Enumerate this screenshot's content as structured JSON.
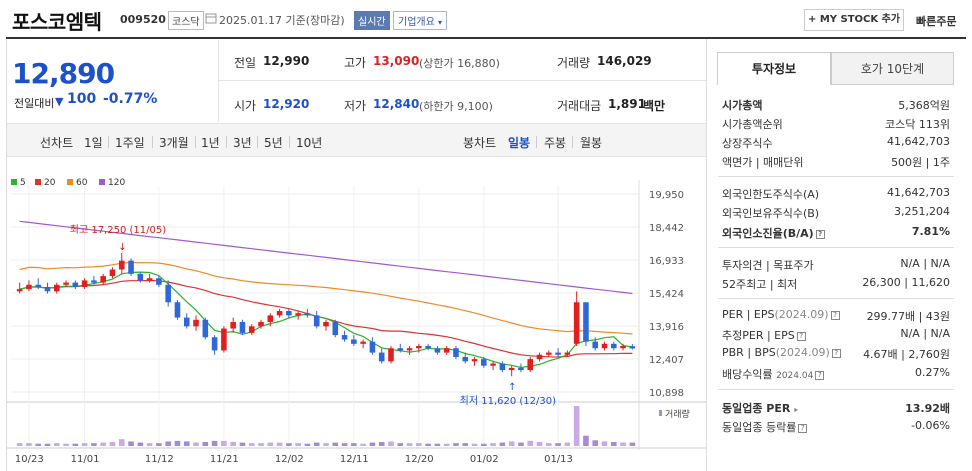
{
  "header": {
    "title": "포스코엠텍",
    "code": "009520",
    "market": "코스닥",
    "date_text": "2025.01.17 기준(장마감)",
    "realtime": "실시간",
    "corp_info": "기업개요",
    "mystock": "+ MY STOCK 추가",
    "quick_order": "빠른주문"
  },
  "summary": {
    "price": "12,890",
    "prev_label": "전일대비",
    "diff": "100",
    "pct": "-0.77%",
    "prev_close_label": "전일",
    "prev_close": "12,990",
    "high_label": "고가",
    "high": "13,090",
    "upper_limit": "(상한가 16,880)",
    "volume_label": "거래량",
    "volume": "146,029",
    "open_label": "시가",
    "open": "12,920",
    "low_label": "저가",
    "low": "12,840",
    "lower_limit": "(하한가 9,100)",
    "amount_label": "거래대금",
    "amount": "1,891",
    "amount_unit": "백만"
  },
  "periods": {
    "line_label": "선차트",
    "items": [
      "1일",
      "1주일",
      "3개월",
      "1년",
      "3년",
      "5년",
      "10년"
    ],
    "candle_label": "봉차트",
    "candle_items": [
      "일봉",
      "주봉",
      "월봉"
    ]
  },
  "legend": [
    "5",
    "20",
    "60",
    "120"
  ],
  "colors": {
    "ma5": "#2bb32b",
    "ma20": "#e03030",
    "ma60": "#f08a24",
    "ma120": "#a05ad0",
    "up": "#e02020",
    "down": "#2e67d8",
    "accent_blue": "#1d51c9"
  },
  "chart_data": {
    "type": "candlestick",
    "y_ticks": [
      "19,950",
      "18,442",
      "16,933",
      "15,424",
      "13,916",
      "12,407",
      "10,898"
    ],
    "ylim": [
      10898,
      19950
    ],
    "x_labels": [
      "10/23",
      "11/01",
      "11/12",
      "11/21",
      "12/02",
      "12/11",
      "12/20",
      "01/02",
      "01/13"
    ],
    "annotation_high": "최고 17,250 (11/05)",
    "annotation_low": "최저 11,620 (12/30)",
    "volume_label": "거래량",
    "candles": [
      [
        15500,
        15900,
        15400,
        15600
      ],
      [
        15600,
        16000,
        15500,
        15800
      ],
      [
        15800,
        16100,
        15600,
        15700
      ],
      [
        15700,
        15900,
        15400,
        15500
      ],
      [
        15500,
        15900,
        15400,
        15800
      ],
      [
        15800,
        16000,
        15700,
        15900
      ],
      [
        15900,
        16000,
        15600,
        15700
      ],
      [
        15700,
        16100,
        15600,
        16000
      ],
      [
        16000,
        16200,
        15800,
        15900
      ],
      [
        15900,
        16300,
        15800,
        16200
      ],
      [
        16200,
        16600,
        16100,
        16500
      ],
      [
        16500,
        17250,
        16300,
        16900
      ],
      [
        16900,
        17000,
        16200,
        16300
      ],
      [
        16300,
        16400,
        15900,
        16000
      ],
      [
        16000,
        16300,
        15900,
        16100
      ],
      [
        16100,
        16200,
        15700,
        15800
      ],
      [
        15800,
        16000,
        14800,
        15000
      ],
      [
        15000,
        15100,
        14200,
        14300
      ],
      [
        14300,
        14500,
        13800,
        13900
      ],
      [
        13900,
        14400,
        13700,
        14200
      ],
      [
        14200,
        14300,
        13300,
        13400
      ],
      [
        13400,
        13500,
        12600,
        12800
      ],
      [
        12800,
        13900,
        12700,
        13800
      ],
      [
        13800,
        14300,
        13600,
        14100
      ],
      [
        14100,
        14200,
        13500,
        13600
      ],
      [
        13600,
        14000,
        13500,
        13900
      ],
      [
        13900,
        14200,
        13800,
        14100
      ],
      [
        14100,
        14500,
        13900,
        14400
      ],
      [
        14400,
        14700,
        14300,
        14600
      ],
      [
        14600,
        14700,
        14300,
        14400
      ],
      [
        14400,
        14600,
        14200,
        14500
      ],
      [
        14500,
        14700,
        14300,
        14400
      ],
      [
        14400,
        14600,
        13800,
        13900
      ],
      [
        13900,
        14200,
        13700,
        14100
      ],
      [
        14100,
        14200,
        13400,
        13500
      ],
      [
        13500,
        13700,
        13200,
        13300
      ],
      [
        13300,
        13500,
        13000,
        13100
      ],
      [
        13100,
        13300,
        12900,
        13200
      ],
      [
        13200,
        13400,
        12600,
        12700
      ],
      [
        12700,
        12900,
        12200,
        12300
      ],
      [
        12300,
        13000,
        12200,
        12900
      ],
      [
        12900,
        13100,
        12700,
        12800
      ],
      [
        12800,
        13000,
        12600,
        12900
      ],
      [
        12900,
        13100,
        12700,
        13000
      ],
      [
        13000,
        13100,
        12800,
        12900
      ],
      [
        12900,
        13000,
        12600,
        12700
      ],
      [
        12700,
        13000,
        12600,
        12900
      ],
      [
        12900,
        13000,
        12400,
        12500
      ],
      [
        12500,
        12700,
        12200,
        12300
      ],
      [
        12300,
        12500,
        12100,
        12400
      ],
      [
        12400,
        12500,
        12000,
        12100
      ],
      [
        12100,
        12300,
        11900,
        12200
      ],
      [
        12200,
        12300,
        11800,
        11900
      ],
      [
        11900,
        12100,
        11620,
        12000
      ],
      [
        12000,
        12200,
        11800,
        11900
      ],
      [
        11900,
        12500,
        11800,
        12400
      ],
      [
        12400,
        12700,
        12300,
        12600
      ],
      [
        12600,
        12800,
        12500,
        12700
      ],
      [
        12700,
        12900,
        12500,
        12600
      ],
      [
        12600,
        12800,
        12500,
        12700
      ],
      [
        13100,
        15500,
        13000,
        15000
      ],
      [
        15000,
        15000,
        13000,
        13200
      ],
      [
        13200,
        13400,
        12800,
        12900
      ],
      [
        12900,
        13200,
        12800,
        13100
      ],
      [
        13100,
        13200,
        12800,
        12900
      ],
      [
        12900,
        13100,
        12800,
        13000
      ],
      [
        12990,
        13090,
        12840,
        12890
      ]
    ],
    "volumes": [
      5,
      5,
      4,
      4,
      5,
      4,
      4,
      5,
      5,
      6,
      7,
      12,
      8,
      6,
      5,
      5,
      8,
      9,
      8,
      6,
      7,
      9,
      9,
      7,
      6,
      5,
      5,
      6,
      6,
      5,
      5,
      4,
      6,
      5,
      6,
      5,
      5,
      4,
      6,
      7,
      8,
      5,
      5,
      5,
      4,
      4,
      4,
      5,
      5,
      4,
      4,
      5,
      6,
      8,
      6,
      9,
      7,
      5,
      5,
      6,
      70,
      18,
      10,
      8,
      7,
      6,
      6
    ]
  },
  "info": {
    "tab_invest": "투자정보",
    "tab_hoga": "호가 10단계",
    "rows": {
      "mcap_label": "시가총액",
      "mcap": "5,368억원",
      "rank_label": "시가총액순위",
      "rank": "코스닥 113위",
      "shares_label": "상장주식수",
      "shares": "41,642,703",
      "face_label": "액면가 | 매매단위",
      "face": "500원 | 1주",
      "foreign_limit_label": "외국인한도주식수(A)",
      "foreign_limit": "41,642,703",
      "foreign_hold_label": "외국인보유주식수(B)",
      "foreign_hold": "3,251,204",
      "foreign_ratio_label": "외국인소진율(B/A)",
      "foreign_ratio": "7.81%",
      "opinion_label": "투자의견 | 목표주가",
      "opinion": "N/A | N/A",
      "w52_label": "52주최고 | 최저",
      "w52": "26,300 | 11,620",
      "per_label": "PER | EPS",
      "per_period": "(2024.09)",
      "per": "299.77배 | 43원",
      "eper_label": "추정PER | EPS",
      "eper": "N/A | N/A",
      "pbr_label": "PBR | BPS",
      "pbr_period": "(2024.09)",
      "pbr": "4.67배 | 2,760원",
      "div_label": "배당수익률",
      "div_period": "2024.04",
      "div": "0.27%",
      "industry_per_label": "동일업종 PER",
      "industry_per": "13.92배",
      "industry_chg_label": "동일업종 등락률",
      "industry_chg": "-0.06%"
    }
  }
}
